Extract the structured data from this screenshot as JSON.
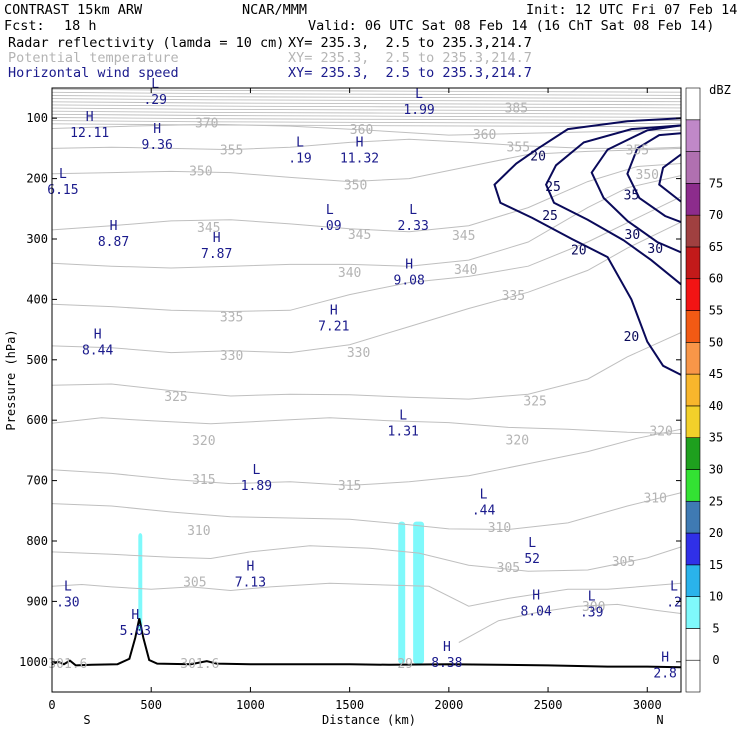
{
  "header": {
    "title": "CONTRAST 15km ARW",
    "org": "NCAR/MMM",
    "init": "Init: 12 UTC Fri 07 Feb 14",
    "fcst_label": "Fcst:",
    "fcst_value": "18 h",
    "valid": "Valid: 06 UTC Sat 08 Feb 14 (16 ChT Sat 08 Feb 14)",
    "fields": [
      {
        "name": "Radar reflectivity (lamda = 10 cm)",
        "xy": "XY= 235.3,  2.5 to 235.3,214.7",
        "color": "#000000"
      },
      {
        "name": "Potential temperature",
        "xy": "XY= 235.3,  2.5 to 235.3,214.7",
        "color": "#b4b4b4"
      },
      {
        "name": "Horizontal wind speed",
        "xy": "XY= 235.3,  2.5 to 235.3,214.7",
        "color": "#1a1a8c"
      }
    ]
  },
  "chart_data": {
    "type": "cross-section contour",
    "xlabel": "Distance (km)",
    "ylabel": "Pressure (hPa)",
    "xlim": [
      0,
      3170
    ],
    "ylim": [
      50,
      1050
    ],
    "xticks": [
      0,
      500,
      1000,
      1500,
      2000,
      2500,
      3000
    ],
    "yticks": [
      100,
      200,
      300,
      400,
      500,
      600,
      700,
      800,
      900,
      1000
    ],
    "end_labels": {
      "left": "S",
      "right": "N"
    },
    "isentropes": [
      {
        "label": "385",
        "x": 2340,
        "p": 82
      },
      {
        "label": "370",
        "x": 780,
        "p": 107
      },
      {
        "label": "360",
        "x": 1560,
        "p": 118
      },
      {
        "label": "360",
        "x": 2180,
        "p": 126
      },
      {
        "label": "355",
        "x": 2950,
        "p": 152
      },
      {
        "label": "355",
        "x": 905,
        "p": 152
      },
      {
        "label": "355",
        "x": 2350,
        "p": 147
      },
      {
        "label": "350",
        "x": 750,
        "p": 187
      },
      {
        "label": "350",
        "x": 1530,
        "p": 210
      },
      {
        "label": "350",
        "x": 3000,
        "p": 192
      },
      {
        "label": "345",
        "x": 790,
        "p": 280
      },
      {
        "label": "345",
        "x": 1550,
        "p": 292
      },
      {
        "label": "345",
        "x": 2075,
        "p": 293
      },
      {
        "label": "340",
        "x": 1500,
        "p": 355
      },
      {
        "label": "340",
        "x": 2085,
        "p": 350
      },
      {
        "label": "335",
        "x": 905,
        "p": 428
      },
      {
        "label": "335",
        "x": 2325,
        "p": 393
      },
      {
        "label": "330",
        "x": 905,
        "p": 492
      },
      {
        "label": "330",
        "x": 1545,
        "p": 487
      },
      {
        "label": "325",
        "x": 625,
        "p": 560
      },
      {
        "label": "325",
        "x": 2435,
        "p": 567
      },
      {
        "label": "320",
        "x": 765,
        "p": 633
      },
      {
        "label": "320",
        "x": 2345,
        "p": 632
      },
      {
        "label": "320",
        "x": 3070,
        "p": 617
      },
      {
        "label": "315",
        "x": 765,
        "p": 697
      },
      {
        "label": "315",
        "x": 1500,
        "p": 707
      },
      {
        "label": "310",
        "x": 740,
        "p": 782
      },
      {
        "label": "310",
        "x": 2255,
        "p": 777
      },
      {
        "label": "310",
        "x": 3040,
        "p": 728
      },
      {
        "label": "305",
        "x": 720,
        "p": 867
      },
      {
        "label": "305",
        "x": 2300,
        "p": 843
      },
      {
        "label": "305",
        "x": 2880,
        "p": 833
      },
      {
        "label": "300",
        "x": 2730,
        "p": 908
      },
      {
        "label": "301.6",
        "x": 80,
        "p": 1002
      },
      {
        "label": "301.6",
        "x": 745,
        "p": 1002
      },
      {
        "label": "29",
        "x": 1780,
        "p": 1002
      }
    ],
    "wind_speed_contours": [
      {
        "label": "20",
        "x": 2450,
        "p": 162
      },
      {
        "label": "25",
        "x": 2525,
        "p": 212
      },
      {
        "label": "25",
        "x": 2510,
        "p": 260
      },
      {
        "label": "35",
        "x": 2920,
        "p": 226
      },
      {
        "label": "30",
        "x": 2925,
        "p": 292
      },
      {
        "label": "30",
        "x": 3040,
        "p": 315
      },
      {
        "label": "20",
        "x": 2655,
        "p": 317
      },
      {
        "label": "20",
        "x": 2920,
        "p": 461
      }
    ],
    "extrema": [
      {
        "type": "L",
        "value": ".29",
        "x": 520,
        "p": 63
      },
      {
        "type": "L",
        "value": "1.99",
        "x": 1850,
        "p": 80
      },
      {
        "type": "H",
        "value": "12.11",
        "x": 190,
        "p": 118
      },
      {
        "type": "H",
        "value": "9.36",
        "x": 530,
        "p": 138
      },
      {
        "type": "L",
        "value": ".19",
        "x": 1250,
        "p": 160
      },
      {
        "type": "H",
        "value": "11.32",
        "x": 1550,
        "p": 160
      },
      {
        "type": "L",
        "value": "6.15",
        "x": 55,
        "p": 212
      },
      {
        "type": "L",
        "value": ".09",
        "x": 1400,
        "p": 272
      },
      {
        "type": "L",
        "value": "2.33",
        "x": 1820,
        "p": 272
      },
      {
        "type": "H",
        "value": "8.87",
        "x": 310,
        "p": 298
      },
      {
        "type": "H",
        "value": "7.87",
        "x": 830,
        "p": 318
      },
      {
        "type": "H",
        "value": "9.08",
        "x": 1800,
        "p": 362
      },
      {
        "type": "H",
        "value": "7.21",
        "x": 1420,
        "p": 438
      },
      {
        "type": "H",
        "value": "8.44",
        "x": 230,
        "p": 478
      },
      {
        "type": "L",
        "value": "1.31",
        "x": 1770,
        "p": 612
      },
      {
        "type": "L",
        "value": "1.89",
        "x": 1030,
        "p": 702
      },
      {
        "type": "L",
        "value": ".44",
        "x": 2175,
        "p": 743
      },
      {
        "type": "L",
        "value": "52",
        "x": 2420,
        "p": 823
      },
      {
        "type": "H",
        "value": "7.13",
        "x": 1000,
        "p": 862
      },
      {
        "type": "L",
        "value": ".30",
        "x": 80,
        "p": 895
      },
      {
        "type": "H",
        "value": "8.04",
        "x": 2440,
        "p": 910
      },
      {
        "type": "L",
        "value": ".39",
        "x": 2720,
        "p": 912
      },
      {
        "type": "L",
        "value": ".2",
        "x": 3135,
        "p": 895
      },
      {
        "type": "H",
        "value": "5.03",
        "x": 420,
        "p": 942
      },
      {
        "type": "H",
        "value": "8.38",
        "x": 1990,
        "p": 995
      },
      {
        "type": "H",
        "value": "2.8",
        "x": 3090,
        "p": 1013
      }
    ],
    "reflectivity_shading": [
      {
        "x_start": 435,
        "x_end": 455,
        "p_top": 787,
        "p_bottom": 950,
        "dbz": "5-10"
      },
      {
        "x_start": 1745,
        "x_end": 1780,
        "p_top": 768,
        "p_bottom": 1003,
        "dbz": "5-10"
      },
      {
        "x_start": 1820,
        "x_end": 1875,
        "p_top": 768,
        "p_bottom": 1003,
        "dbz": "5-10"
      }
    ],
    "terrain": [
      [
        0,
        1004
      ],
      [
        30,
        1000
      ],
      [
        60,
        1004
      ],
      [
        90,
        998
      ],
      [
        120,
        1006
      ],
      [
        200,
        1005
      ],
      [
        330,
        1004
      ],
      [
        390,
        995
      ],
      [
        420,
        960
      ],
      [
        440,
        928
      ],
      [
        460,
        960
      ],
      [
        490,
        997
      ],
      [
        530,
        1003
      ],
      [
        700,
        1004
      ],
      [
        780,
        999
      ],
      [
        830,
        1003
      ],
      [
        1000,
        1004
      ],
      [
        1200,
        1004
      ],
      [
        1500,
        1004
      ],
      [
        1700,
        1005
      ],
      [
        2000,
        1004
      ],
      [
        2500,
        1006
      ],
      [
        2800,
        1008
      ],
      [
        3000,
        1008
      ],
      [
        3170,
        1009
      ]
    ],
    "colorbar": {
      "title": "dBZ",
      "levels": [
        "0",
        "5",
        "10",
        "15",
        "20",
        "25",
        "30",
        "35",
        "40",
        "45",
        "50",
        "55",
        "60",
        "65",
        "70",
        "75"
      ],
      "colors": [
        "#ffffff",
        "#ffffff",
        "#7ff9fb",
        "#2ab3eb",
        "#3030e8",
        "#3f7ab3",
        "#33e233",
        "#1ea01e",
        "#f2d02a",
        "#f8b62c",
        "#f89648",
        "#f25a14",
        "#f21414",
        "#c21a1a",
        "#a04040",
        "#8c2c8c",
        "#b070b0",
        "#c088c8",
        "#ffffff"
      ]
    }
  }
}
